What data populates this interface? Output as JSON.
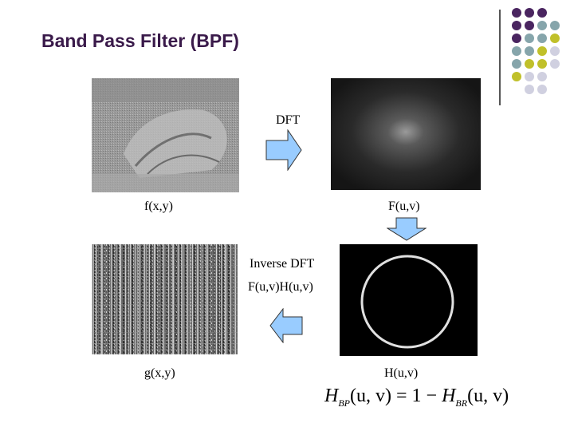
{
  "slide": {
    "title": "Band Pass Filter (BPF)"
  },
  "labels": {
    "dft": "DFT",
    "f_xy": "f(x,y)",
    "F_uv": "F(u,v)",
    "inverse_dft": "Inverse DFT",
    "FH_product": "F(u,v)H(u,v)",
    "g_xy": "g(x,y)",
    "H_uv": "H(u,v)"
  },
  "formula": {
    "lhs": "H",
    "lhs_sub": "BP",
    "args1": "(u, v)",
    "equals": "= 1 −",
    "rhs": "H",
    "rhs_sub": "BR",
    "args2": "(u, v)"
  },
  "decoration": {
    "dot_colors": {
      "purple": "#4a2560",
      "teal": "#86a5ab",
      "yellow": "#c0c02a",
      "gray": "#d0d0e0"
    },
    "arrow_color": "#99ccff"
  }
}
